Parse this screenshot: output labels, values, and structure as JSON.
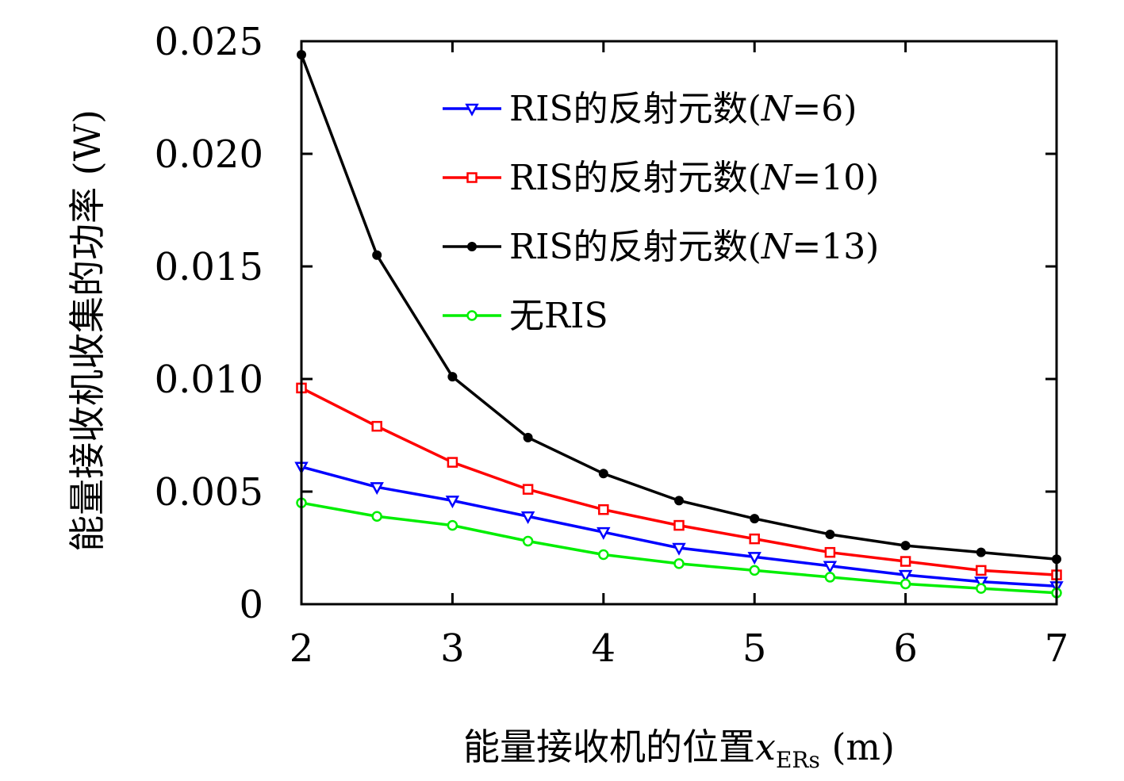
{
  "chart_data": {
    "type": "line",
    "title": "",
    "xlabel": "能量接收机的位置",
    "xlabel_var": "x",
    "xlabel_sub": "ERs",
    "xlabel_unit": " (m)",
    "ylabel": "能量接收机收集的功率 (W)",
    "xlim": [
      2,
      7
    ],
    "ylim": [
      0,
      0.025
    ],
    "x_ticks": [
      2,
      3,
      4,
      5,
      6,
      7
    ],
    "x_tick_labels": [
      "2",
      "3",
      "4",
      "5",
      "6",
      "7"
    ],
    "y_ticks": [
      0,
      0.005,
      0.01,
      0.015,
      0.02,
      0.025
    ],
    "y_tick_labels": [
      "0",
      "0.005",
      "0.010",
      "0.015",
      "0.020",
      "0.025"
    ],
    "grid": false,
    "legend_position": "top-right",
    "x": [
      2,
      2.5,
      3,
      3.5,
      4,
      4.5,
      5,
      5.5,
      6,
      6.5,
      7
    ],
    "series": [
      {
        "name": "RIS的反射元数(N=6)",
        "legend_prefix": "RIS的反射元数(",
        "legend_var": "N",
        "legend_suffix": "=6)",
        "color": "#0000ff",
        "marker": "triangle-down",
        "values": [
          0.0061,
          0.0052,
          0.0046,
          0.0039,
          0.0032,
          0.0025,
          0.0021,
          0.0017,
          0.0013,
          0.001,
          0.0008
        ]
      },
      {
        "name": "RIS的反射元数(N=10)",
        "legend_prefix": "RIS的反射元数(",
        "legend_var": "N",
        "legend_suffix": "=10)",
        "color": "#ff0000",
        "marker": "square",
        "values": [
          0.0096,
          0.0079,
          0.0063,
          0.0051,
          0.0042,
          0.0035,
          0.0029,
          0.0023,
          0.0019,
          0.0015,
          0.0013
        ]
      },
      {
        "name": "RIS的反射元数(N=13)",
        "legend_prefix": "RIS的反射元数(",
        "legend_var": "N",
        "legend_suffix": "=13)",
        "color": "#000000",
        "marker": "dot",
        "values": [
          0.0244,
          0.0155,
          0.0101,
          0.0074,
          0.0058,
          0.0046,
          0.0038,
          0.0031,
          0.0026,
          0.0023,
          0.002
        ]
      },
      {
        "name": "无RIS",
        "legend_prefix": "无RIS",
        "legend_var": "",
        "legend_suffix": "",
        "color": "#00ee00",
        "marker": "circle",
        "values": [
          0.0045,
          0.0039,
          0.0035,
          0.0028,
          0.0022,
          0.0018,
          0.0015,
          0.0012,
          0.0009,
          0.0007,
          0.0005
        ]
      }
    ]
  }
}
